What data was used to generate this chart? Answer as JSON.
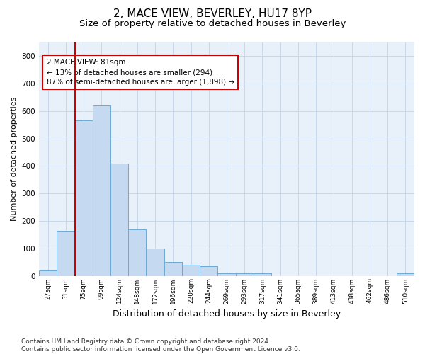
{
  "title1": "2, MACE VIEW, BEVERLEY, HU17 8YP",
  "title2": "Size of property relative to detached houses in Beverley",
  "xlabel": "Distribution of detached houses by size in Beverley",
  "ylabel": "Number of detached properties",
  "footnote": "Contains HM Land Registry data © Crown copyright and database right 2024.\nContains public sector information licensed under the Open Government Licence v3.0.",
  "bar_labels": [
    "27sqm",
    "51sqm",
    "75sqm",
    "99sqm",
    "124sqm",
    "148sqm",
    "172sqm",
    "196sqm",
    "220sqm",
    "244sqm",
    "269sqm",
    "293sqm",
    "317sqm",
    "341sqm",
    "365sqm",
    "389sqm",
    "413sqm",
    "438sqm",
    "462sqm",
    "486sqm",
    "510sqm"
  ],
  "bar_values": [
    20,
    165,
    565,
    620,
    410,
    170,
    100,
    50,
    40,
    35,
    10,
    10,
    10,
    0,
    0,
    0,
    0,
    0,
    0,
    0,
    8
  ],
  "bar_color": "#c5d9f0",
  "bar_edgecolor": "#6aaad4",
  "vline_color": "#cc0000",
  "annotation_text": "2 MACE VIEW: 81sqm\n← 13% of detached houses are smaller (294)\n87% of semi-detached houses are larger (1,898) →",
  "annotation_box_color": "#cc0000",
  "ylim": [
    0,
    850
  ],
  "yticks": [
    0,
    100,
    200,
    300,
    400,
    500,
    600,
    700,
    800
  ],
  "grid_color": "#c8d8ea",
  "bg_color": "#e8f0fa",
  "title1_fontsize": 11,
  "title2_fontsize": 9.5,
  "xlabel_fontsize": 9,
  "ylabel_fontsize": 8,
  "footnote_fontsize": 6.5
}
